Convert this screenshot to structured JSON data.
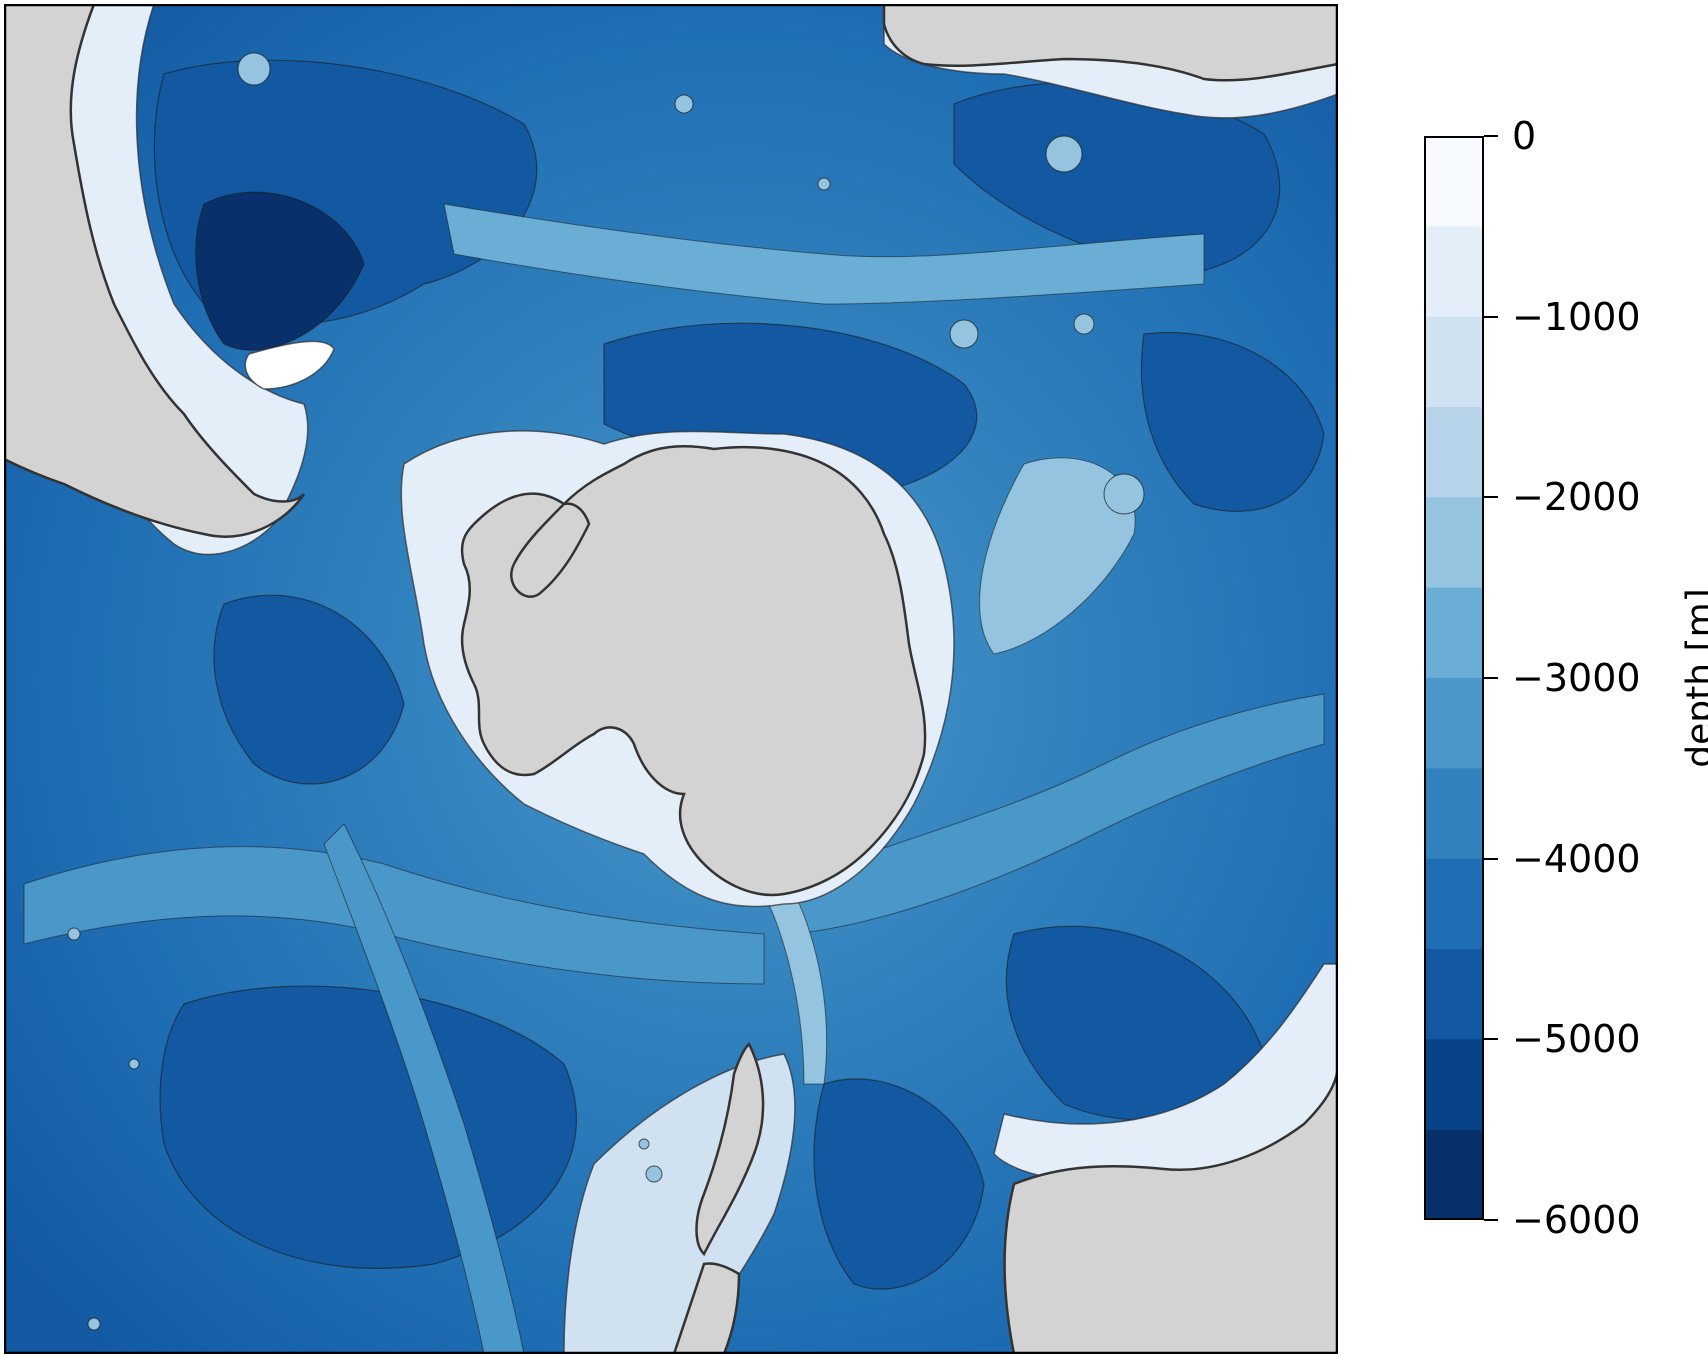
{
  "colorbar": {
    "label": "depth [m]",
    "ticks": [
      "0",
      "−1000",
      "−2000",
      "−3000",
      "−4000",
      "−5000",
      "−6000"
    ],
    "tick_values": [
      0,
      -1000,
      -2000,
      -3000,
      -4000,
      -5000,
      -6000
    ],
    "range": [
      -6000,
      0
    ],
    "levels": [
      0,
      -500,
      -1000,
      -1500,
      -2000,
      -2500,
      -3000,
      -3500,
      -4000,
      -4500,
      -5000,
      -5500,
      -6000
    ],
    "colors": [
      "#f7fbff",
      "#e3eef9",
      "#d0e1f2",
      "#b7d4ea",
      "#94c4df",
      "#6aaed6",
      "#4a98c9",
      "#3282be",
      "#1f6eb3",
      "#1259a1",
      "#084387",
      "#08306b"
    ]
  },
  "map": {
    "land_color": "#d3d3d3",
    "contour_color": "#2b2b2b",
    "projection": "south-polar-stereographic",
    "regions": [
      "antarctica",
      "south-america",
      "africa",
      "australia",
      "new-zealand"
    ]
  }
}
